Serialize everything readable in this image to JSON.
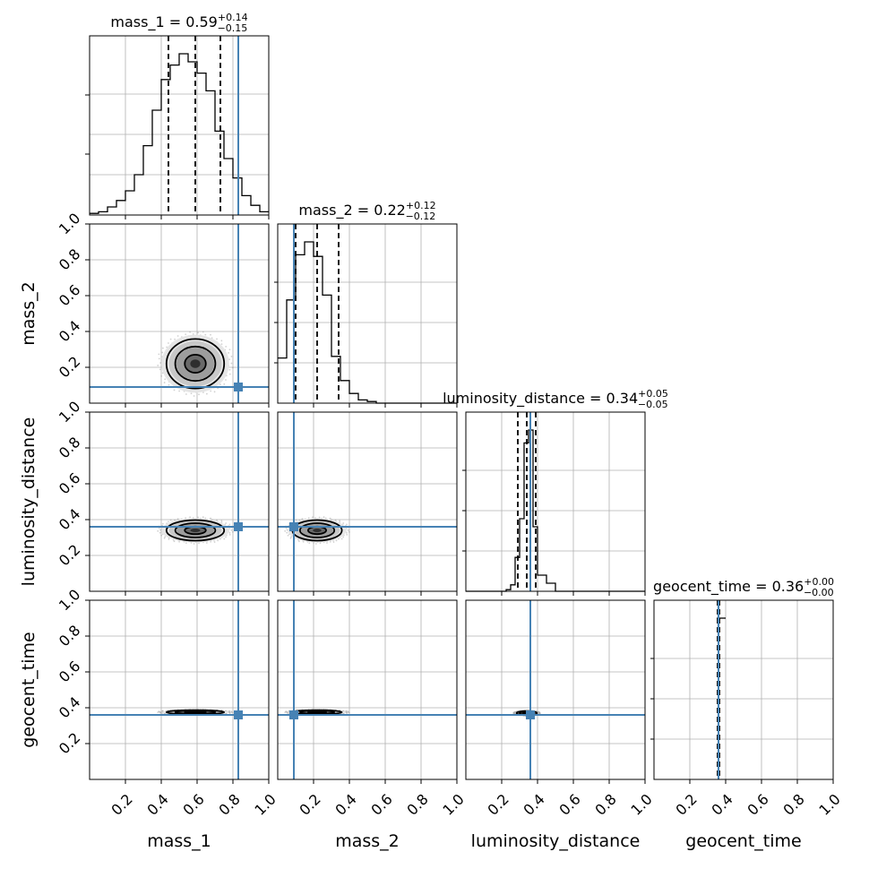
{
  "chart_data": {
    "type": "corner",
    "parameters": [
      "mass_1",
      "mass_2",
      "luminosity_distance",
      "geocent_time"
    ],
    "axis_range": [
      0,
      1
    ],
    "tick_values": [
      0.2,
      0.4,
      0.6,
      0.8,
      1.0
    ],
    "tick_labels": [
      "0.2",
      "0.4",
      "0.6",
      "0.8",
      "1.0"
    ],
    "grid": true,
    "truth_color": "#4682b4",
    "truths": [
      0.83,
      0.09,
      0.36,
      0.36
    ],
    "titles": [
      {
        "name": "mass_1",
        "median": "0.59",
        "plus": "+0.14",
        "minus": "−0.15"
      },
      {
        "name": "mass_2",
        "median": "0.22",
        "plus": "+0.12",
        "minus": "−0.12"
      },
      {
        "name": "luminosity_distance",
        "median": "0.34",
        "plus": "+0.05",
        "minus": "−0.05"
      },
      {
        "name": "geocent_time",
        "median": "0.36",
        "plus": "+0.00",
        "minus": "−0.00"
      }
    ],
    "quantiles": [
      [
        0.44,
        0.59,
        0.73
      ],
      [
        0.1,
        0.22,
        0.34
      ],
      [
        0.29,
        0.34,
        0.39
      ],
      [
        0.355,
        0.36,
        0.365
      ]
    ],
    "histograms": [
      {
        "bin_start": 0.0,
        "bin_width": 0.05,
        "counts": [
          0.01,
          0.02,
          0.05,
          0.09,
          0.15,
          0.25,
          0.43,
          0.65,
          0.84,
          0.93,
          1.0,
          0.95,
          0.88,
          0.77,
          0.52,
          0.35,
          0.23,
          0.12,
          0.06,
          0.02
        ]
      },
      {
        "bin_start": 0.0,
        "bin_width": 0.05,
        "counts": [
          0.28,
          0.64,
          0.92,
          1.0,
          0.91,
          0.67,
          0.29,
          0.14,
          0.06,
          0.02,
          0.01,
          0.0,
          0.0,
          0.0,
          0.0,
          0.0,
          0.0,
          0.0,
          0.0,
          0.0
        ]
      },
      {
        "bin_start": 0.0,
        "bin_width": 0.025,
        "counts": [
          0,
          0,
          0,
          0,
          0,
          0,
          0,
          0,
          0,
          0.01,
          0.04,
          0.21,
          0.45,
          0.92,
          1.0,
          0.4,
          0.1,
          0.1,
          0.05,
          0.05,
          0.0,
          0.0,
          0.0,
          0.0,
          0.0,
          0.0,
          0.0,
          0.0,
          0.0,
          0.0,
          0.0,
          0.0,
          0.0,
          0.0,
          0.0,
          0.0,
          0.0,
          0.0,
          0.0,
          0.0
        ]
      },
      {
        "bin_start": 0.35,
        "bin_width": 0.05,
        "counts": [
          1.0
        ]
      }
    ],
    "density_centers": [
      {
        "x": 0.59,
        "y": 0.22,
        "sx": 0.14,
        "sy": 0.12
      },
      {
        "x": 0.59,
        "y": 0.34,
        "sx": 0.14,
        "sy": 0.05
      },
      {
        "x": 0.22,
        "y": 0.34,
        "sx": 0.12,
        "sy": 0.05
      },
      {
        "x": 0.59,
        "y": 0.375,
        "sx": 0.14,
        "sy": 0.006
      },
      {
        "x": 0.22,
        "y": 0.375,
        "sx": 0.12,
        "sy": 0.006
      },
      {
        "x": 0.34,
        "y": 0.37,
        "sx": 0.05,
        "sy": 0.006
      }
    ],
    "axis_labels": [
      "mass_1",
      "mass_2",
      "luminosity_distance",
      "geocent_time"
    ]
  }
}
